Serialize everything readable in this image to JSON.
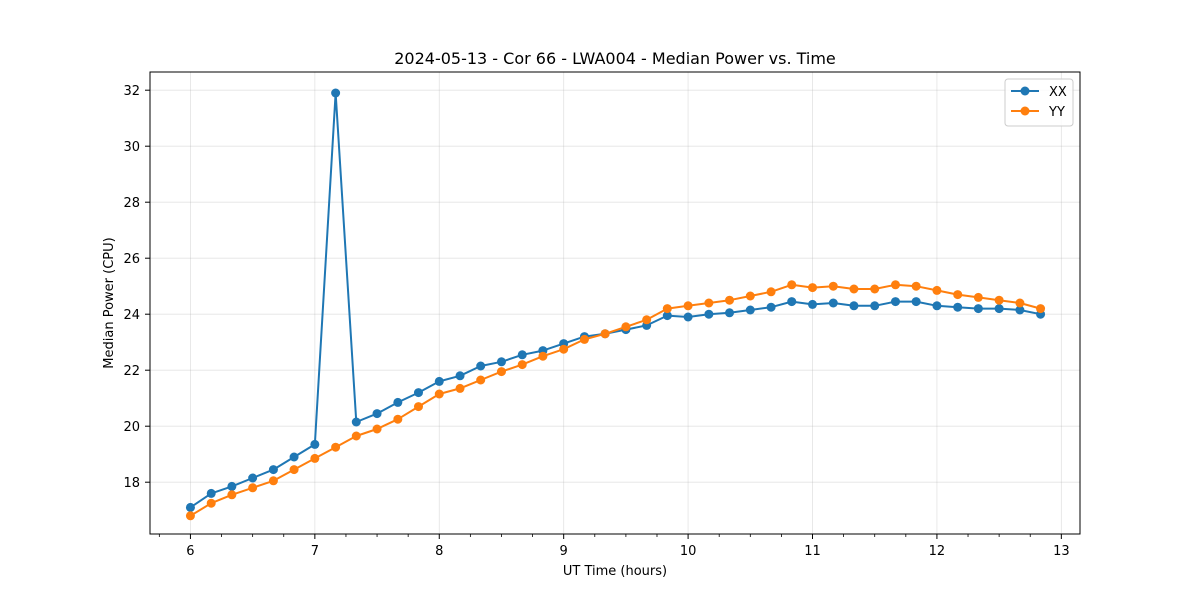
{
  "chart_data": {
    "type": "line",
    "title": "2024-05-13 - Cor 66 - LWA004 - Median Power vs. Time",
    "xlabel": "UT Time (hours)",
    "ylabel": "Median Power (CPU)",
    "xlim": [
      5.675,
      13.15
    ],
    "ylim": [
      16.15,
      32.65
    ],
    "xticks": [
      6,
      7,
      8,
      9,
      10,
      11,
      12,
      13
    ],
    "yticks": [
      18,
      20,
      22,
      24,
      26,
      28,
      30,
      32
    ],
    "grid": true,
    "legend_position": "top-right",
    "x": [
      6.0,
      6.167,
      6.333,
      6.5,
      6.667,
      6.833,
      7.0,
      7.167,
      7.333,
      7.5,
      7.667,
      7.833,
      8.0,
      8.167,
      8.333,
      8.5,
      8.667,
      8.833,
      9.0,
      9.167,
      9.333,
      9.5,
      9.667,
      9.833,
      10.0,
      10.167,
      10.333,
      10.5,
      10.667,
      10.833,
      11.0,
      11.167,
      11.333,
      11.5,
      11.667,
      11.833,
      12.0,
      12.167,
      12.333,
      12.5,
      12.667,
      12.833
    ],
    "series": [
      {
        "name": "XX",
        "color": "#1f77b4",
        "values": [
          17.1,
          17.6,
          17.85,
          18.15,
          18.45,
          18.9,
          19.35,
          31.9,
          20.15,
          20.45,
          20.85,
          21.2,
          21.6,
          21.8,
          22.15,
          22.3,
          22.55,
          22.7,
          22.95,
          23.2,
          23.3,
          23.45,
          23.6,
          23.95,
          23.9,
          24.0,
          24.05,
          24.15,
          24.25,
          24.45,
          24.35,
          24.4,
          24.3,
          24.3,
          24.45,
          24.45,
          24.3,
          24.25,
          24.2,
          24.2,
          24.15,
          24.0
        ]
      },
      {
        "name": "YY",
        "color": "#ff7f0e",
        "values": [
          16.8,
          17.25,
          17.55,
          17.8,
          18.05,
          18.45,
          18.85,
          19.25,
          19.65,
          19.9,
          20.25,
          20.7,
          21.15,
          21.35,
          21.65,
          21.95,
          22.2,
          22.5,
          22.75,
          23.1,
          23.3,
          23.55,
          23.8,
          24.2,
          24.3,
          24.4,
          24.5,
          24.65,
          24.8,
          25.05,
          24.95,
          25.0,
          24.9,
          24.9,
          25.05,
          25.0,
          24.85,
          24.7,
          24.6,
          24.5,
          24.4,
          24.2
        ]
      }
    ]
  }
}
